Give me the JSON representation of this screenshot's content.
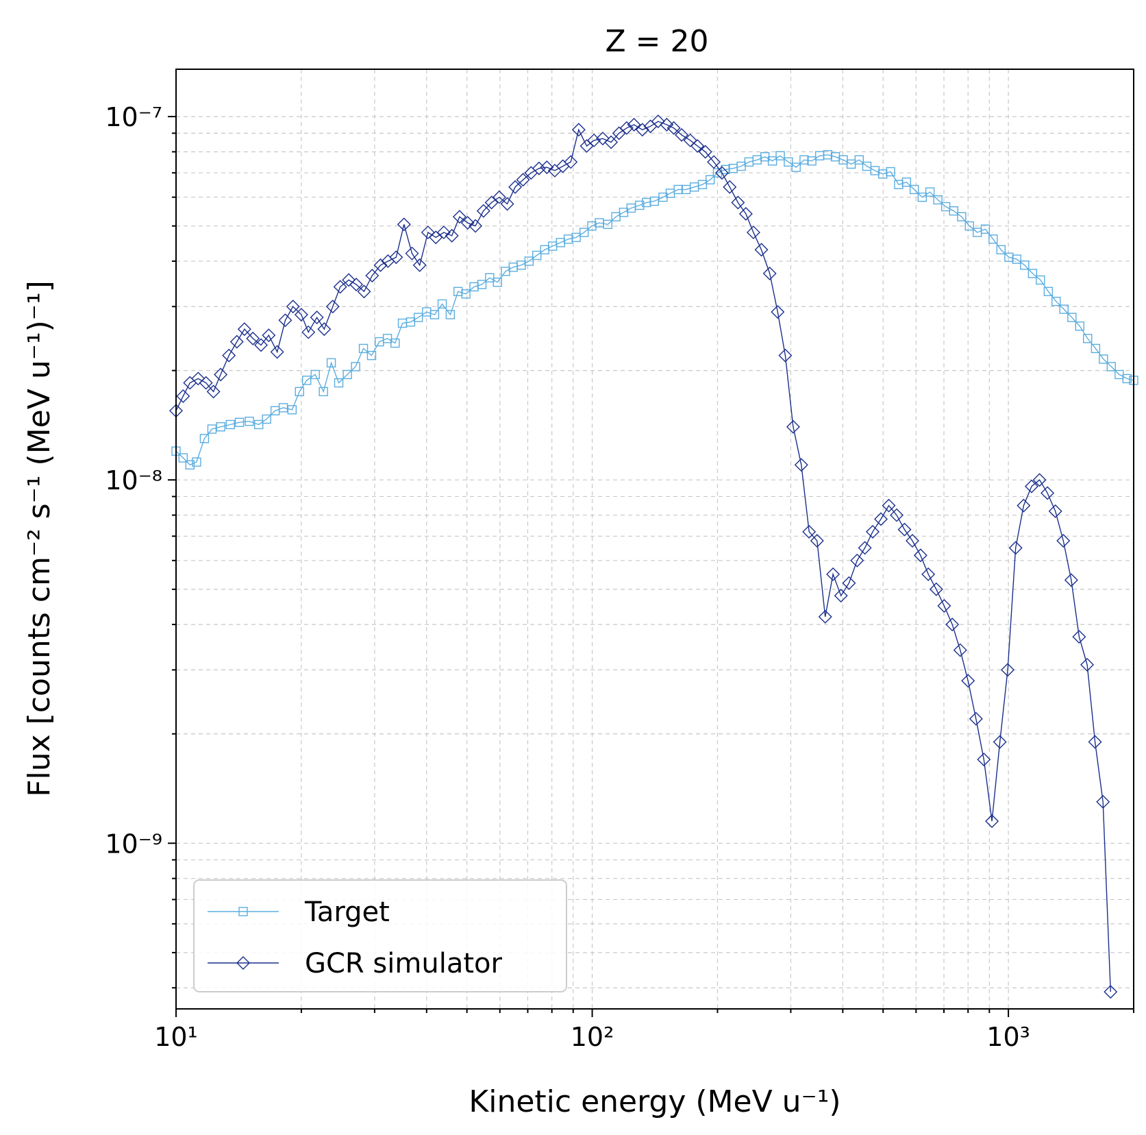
{
  "chart_data": {
    "type": "line",
    "title": "Z = 20",
    "xlabel": "Kinetic energy (MeV u⁻¹)",
    "ylabel": "Flux [counts cm⁻² s⁻¹ (MeV u⁻¹)⁻¹]",
    "xscale": "log",
    "yscale": "log",
    "xlim": [
      10,
      2000
    ],
    "ylim": [
      3.5e-10,
      1.35e-07
    ],
    "grid": true,
    "legend_position": "lower-left",
    "x_tick_labels": [
      "10¹",
      "10²",
      "10³"
    ],
    "y_tick_labels": [
      "10⁻⁹",
      "10⁻⁸",
      "10⁻⁷"
    ],
    "series": [
      {
        "name": "Target",
        "color": "#5aade0",
        "marker": "square",
        "points": [
          [
            10,
            1.2e-08
          ],
          [
            10.4,
            1.15e-08
          ],
          [
            10.8,
            1.1e-08
          ],
          [
            11.2,
            1.12e-08
          ],
          [
            11.7,
            1.3e-08
          ],
          [
            12.2,
            1.38e-08
          ],
          [
            12.8,
            1.4e-08
          ],
          [
            13.5,
            1.42e-08
          ],
          [
            14.2,
            1.44e-08
          ],
          [
            15,
            1.45e-08
          ],
          [
            15.8,
            1.42e-08
          ],
          [
            16.5,
            1.47e-08
          ],
          [
            17.3,
            1.55e-08
          ],
          [
            18.1,
            1.58e-08
          ],
          [
            19,
            1.56e-08
          ],
          [
            19.8,
            1.75e-08
          ],
          [
            20.6,
            1.88e-08
          ],
          [
            21.6,
            1.95e-08
          ],
          [
            22.6,
            1.75e-08
          ],
          [
            23.6,
            2.1e-08
          ],
          [
            24.6,
            1.85e-08
          ],
          [
            25.8,
            1.95e-08
          ],
          [
            27,
            2.05e-08
          ],
          [
            28.2,
            2.3e-08
          ],
          [
            29.5,
            2.2e-08
          ],
          [
            30.8,
            2.4e-08
          ],
          [
            32.2,
            2.45e-08
          ],
          [
            33.6,
            2.38e-08
          ],
          [
            35,
            2.7e-08
          ],
          [
            36.6,
            2.72e-08
          ],
          [
            38.2,
            2.8e-08
          ],
          [
            40,
            2.9e-08
          ],
          [
            41.8,
            2.85e-08
          ],
          [
            43.6,
            3.05e-08
          ],
          [
            45.6,
            2.85e-08
          ],
          [
            47.6,
            3.3e-08
          ],
          [
            49.7,
            3.25e-08
          ],
          [
            52,
            3.4e-08
          ],
          [
            54.3,
            3.45e-08
          ],
          [
            56.7,
            3.6e-08
          ],
          [
            59.2,
            3.5e-08
          ],
          [
            61.9,
            3.75e-08
          ],
          [
            64.6,
            3.85e-08
          ],
          [
            67.5,
            3.9e-08
          ],
          [
            70.5,
            4e-08
          ],
          [
            73.6,
            4.15e-08
          ],
          [
            76.9,
            4.3e-08
          ],
          [
            80.3,
            4.4e-08
          ],
          [
            83.9,
            4.5e-08
          ],
          [
            87.6,
            4.6e-08
          ],
          [
            91.5,
            4.65e-08
          ],
          [
            95.6,
            4.8e-08
          ],
          [
            99.8,
            5e-08
          ],
          [
            104,
            5.1e-08
          ],
          [
            109,
            5.05e-08
          ],
          [
            114,
            5.3e-08
          ],
          [
            119,
            5.45e-08
          ],
          [
            124,
            5.6e-08
          ],
          [
            130,
            5.7e-08
          ],
          [
            135,
            5.8e-08
          ],
          [
            141,
            5.85e-08
          ],
          [
            148,
            6e-08
          ],
          [
            154,
            6.15e-08
          ],
          [
            161,
            6.3e-08
          ],
          [
            168,
            6.3e-08
          ],
          [
            176,
            6.4e-08
          ],
          [
            184,
            6.5e-08
          ],
          [
            192,
            6.7e-08
          ],
          [
            200,
            7e-08
          ],
          [
            209,
            7.15e-08
          ],
          [
            218,
            7.2e-08
          ],
          [
            228,
            7.3e-08
          ],
          [
            238,
            7.5e-08
          ],
          [
            249,
            7.6e-08
          ],
          [
            260,
            7.75e-08
          ],
          [
            271,
            7.55e-08
          ],
          [
            283,
            7.8e-08
          ],
          [
            296,
            7.5e-08
          ],
          [
            309,
            7.25e-08
          ],
          [
            323,
            7.6e-08
          ],
          [
            337,
            7.55e-08
          ],
          [
            352,
            7.8e-08
          ],
          [
            368,
            7.85e-08
          ],
          [
            384,
            7.75e-08
          ],
          [
            401,
            7.6e-08
          ],
          [
            419,
            7.4e-08
          ],
          [
            438,
            7.6e-08
          ],
          [
            457,
            7.3e-08
          ],
          [
            478,
            7.1e-08
          ],
          [
            499,
            6.95e-08
          ],
          [
            521,
            7.05e-08
          ],
          [
            545,
            6.5e-08
          ],
          [
            569,
            6.6e-08
          ],
          [
            594,
            6.3e-08
          ],
          [
            621,
            6e-08
          ],
          [
            648,
            6.2e-08
          ],
          [
            677,
            5.9e-08
          ],
          [
            707,
            5.65e-08
          ],
          [
            739,
            5.5e-08
          ],
          [
            772,
            5.3e-08
          ],
          [
            806,
            5e-08
          ],
          [
            842,
            4.8e-08
          ],
          [
            880,
            4.9e-08
          ],
          [
            919,
            4.6e-08
          ],
          [
            960,
            4.3e-08
          ],
          [
            1003,
            4.1e-08
          ],
          [
            1047,
            4.05e-08
          ],
          [
            1094,
            3.9e-08
          ],
          [
            1143,
            3.7e-08
          ],
          [
            1194,
            3.55e-08
          ],
          [
            1247,
            3.3e-08
          ],
          [
            1302,
            3.1e-08
          ],
          [
            1360,
            2.95e-08
          ],
          [
            1421,
            2.8e-08
          ],
          [
            1484,
            2.65e-08
          ],
          [
            1550,
            2.45e-08
          ],
          [
            1620,
            2.3e-08
          ],
          [
            1692,
            2.15e-08
          ],
          [
            1767,
            2.05e-08
          ],
          [
            1846,
            1.95e-08
          ],
          [
            1928,
            1.9e-08
          ],
          [
            2000,
            1.88e-08
          ]
        ]
      },
      {
        "name": "GCR simulator",
        "color": "#1b2f8c",
        "marker": "diamond",
        "points": [
          [
            10,
            1.55e-08
          ],
          [
            10.4,
            1.7e-08
          ],
          [
            10.8,
            1.85e-08
          ],
          [
            11.3,
            1.9e-08
          ],
          [
            11.8,
            1.85e-08
          ],
          [
            12.3,
            1.75e-08
          ],
          [
            12.8,
            1.95e-08
          ],
          [
            13.4,
            2.2e-08
          ],
          [
            14,
            2.4e-08
          ],
          [
            14.6,
            2.6e-08
          ],
          [
            15.3,
            2.45e-08
          ],
          [
            16,
            2.35e-08
          ],
          [
            16.7,
            2.5e-08
          ],
          [
            17.5,
            2.25e-08
          ],
          [
            18.3,
            2.75e-08
          ],
          [
            19.1,
            3e-08
          ],
          [
            20,
            2.85e-08
          ],
          [
            20.8,
            2.55e-08
          ],
          [
            21.8,
            2.8e-08
          ],
          [
            22.7,
            2.6e-08
          ],
          [
            23.8,
            3e-08
          ],
          [
            24.8,
            3.4e-08
          ],
          [
            26,
            3.55e-08
          ],
          [
            27.1,
            3.45e-08
          ],
          [
            28.3,
            3.3e-08
          ],
          [
            29.6,
            3.65e-08
          ],
          [
            31,
            3.9e-08
          ],
          [
            32.3,
            4e-08
          ],
          [
            33.8,
            4.1e-08
          ],
          [
            35.3,
            5.05e-08
          ],
          [
            36.9,
            4.2e-08
          ],
          [
            38.5,
            3.9e-08
          ],
          [
            40.3,
            4.8e-08
          ],
          [
            42.1,
            4.65e-08
          ],
          [
            44,
            4.8e-08
          ],
          [
            46,
            4.7e-08
          ],
          [
            48,
            5.3e-08
          ],
          [
            50.2,
            5.1e-08
          ],
          [
            52.4,
            5e-08
          ],
          [
            54.8,
            5.5e-08
          ],
          [
            57.3,
            5.8e-08
          ],
          [
            59.8,
            6e-08
          ],
          [
            62.5,
            5.75e-08
          ],
          [
            65.3,
            6.4e-08
          ],
          [
            68.2,
            6.7e-08
          ],
          [
            71.3,
            7e-08
          ],
          [
            74.5,
            7.2e-08
          ],
          [
            77.8,
            7.25e-08
          ],
          [
            81.3,
            7.1e-08
          ],
          [
            85,
            7.3e-08
          ],
          [
            88.8,
            7.5e-08
          ],
          [
            92.8,
            9.2e-08
          ],
          [
            97,
            8.3e-08
          ],
          [
            101,
            8.6e-08
          ],
          [
            106,
            8.7e-08
          ],
          [
            111,
            8.5e-08
          ],
          [
            116,
            9e-08
          ],
          [
            121,
            9.3e-08
          ],
          [
            126,
            9.5e-08
          ],
          [
            132,
            9.2e-08
          ],
          [
            138,
            9.4e-08
          ],
          [
            144,
            9.7e-08
          ],
          [
            151,
            9.5e-08
          ],
          [
            157,
            9.3e-08
          ],
          [
            164,
            8.9e-08
          ],
          [
            172,
            8.6e-08
          ],
          [
            179,
            8.3e-08
          ],
          [
            187,
            8e-08
          ],
          [
            196,
            7.5e-08
          ],
          [
            205,
            7e-08
          ],
          [
            214,
            6.4e-08
          ],
          [
            224,
            5.8e-08
          ],
          [
            234,
            5.4e-08
          ],
          [
            244,
            4.8e-08
          ],
          [
            255,
            4.3e-08
          ],
          [
            267,
            3.7e-08
          ],
          [
            279,
            2.9e-08
          ],
          [
            291,
            2.2e-08
          ],
          [
            304,
            1.4e-08
          ],
          [
            318,
            1.1e-08
          ],
          [
            332,
            7.2e-09
          ],
          [
            347,
            6.8e-09
          ],
          [
            363,
            4.2e-09
          ],
          [
            379,
            5.5e-09
          ],
          [
            396,
            4.8e-09
          ],
          [
            414,
            5.2e-09
          ],
          [
            433,
            6e-09
          ],
          [
            452,
            6.5e-09
          ],
          [
            472,
            7.2e-09
          ],
          [
            494,
            7.8e-09
          ],
          [
            516,
            8.5e-09
          ],
          [
            539,
            8e-09
          ],
          [
            563,
            7.3e-09
          ],
          [
            588,
            6.8e-09
          ],
          [
            615,
            6.2e-09
          ],
          [
            642,
            5.5e-09
          ],
          [
            671,
            5e-09
          ],
          [
            701,
            4.5e-09
          ],
          [
            733,
            4e-09
          ],
          [
            766,
            3.4e-09
          ],
          [
            800,
            2.8e-09
          ],
          [
            836,
            2.2e-09
          ],
          [
            873,
            1.7e-09
          ],
          [
            913,
            1.15e-09
          ],
          [
            954,
            1.9e-09
          ],
          [
            996,
            3e-09
          ],
          [
            1041,
            6.5e-09
          ],
          [
            1088,
            8.5e-09
          ],
          [
            1137,
            9.6e-09
          ],
          [
            1188,
            1e-08
          ],
          [
            1241,
            9.2e-09
          ],
          [
            1297,
            8.2e-09
          ],
          [
            1355,
            6.8e-09
          ],
          [
            1416,
            5.3e-09
          ],
          [
            1479,
            3.7e-09
          ],
          [
            1546,
            3.1e-09
          ],
          [
            1615,
            1.9e-09
          ],
          [
            1688,
            1.3e-09
          ],
          [
            1760,
            3.9e-10
          ]
        ]
      }
    ]
  }
}
